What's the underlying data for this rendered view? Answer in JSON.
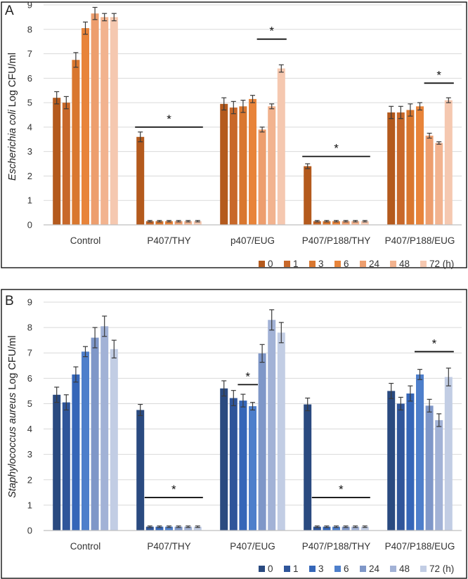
{
  "chart_data": [
    {
      "panel": "A",
      "type": "bar",
      "title": "",
      "ylabel_species": "Escherichia coli",
      "ylabel_rest": " Log CFU/ml",
      "xlabel": "",
      "ylim": [
        0,
        9
      ],
      "yticks": [
        "0",
        "1",
        "2",
        "3",
        "4",
        "5",
        "6",
        "7",
        "8",
        "9"
      ],
      "categories": [
        "Control",
        "P407/THY",
        "p407/EUG",
        "P407/P188/THY",
        "P407/P188/EUG"
      ],
      "series": [
        {
          "name": "0",
          "color": "#b45a1d",
          "values": [
            5.2,
            3.6,
            4.95,
            2.4,
            4.6
          ],
          "errors": [
            0.25,
            0.2,
            0.25,
            0.1,
            0.25
          ]
        },
        {
          "name": "1",
          "color": "#c8682a",
          "values": [
            5.0,
            0.15,
            4.8,
            0.15,
            4.6
          ],
          "errors": [
            0.25,
            0.03,
            0.25,
            0.03,
            0.25
          ]
        },
        {
          "name": "3",
          "color": "#d9772f",
          "values": [
            6.75,
            0.15,
            4.85,
            0.15,
            4.7
          ],
          "errors": [
            0.3,
            0.03,
            0.25,
            0.03,
            0.25
          ]
        },
        {
          "name": "6",
          "color": "#e8843a",
          "values": [
            8.05,
            0.15,
            5.15,
            0.15,
            4.85
          ],
          "errors": [
            0.25,
            0.03,
            0.15,
            0.03,
            0.15
          ]
        },
        {
          "name": "24",
          "color": "#ed9e6e",
          "values": [
            8.65,
            0.15,
            3.9,
            0.15,
            3.65
          ],
          "errors": [
            0.25,
            0.03,
            0.1,
            0.03,
            0.1
          ]
        },
        {
          "name": "48",
          "color": "#f2b38f",
          "values": [
            8.5,
            0.15,
            4.85,
            0.15,
            3.35
          ],
          "errors": [
            0.15,
            0.03,
            0.1,
            0.03,
            0.05
          ]
        },
        {
          "name": "72",
          "color": "#f5c8b0",
          "values": [
            8.5,
            0.15,
            6.4,
            0.15,
            5.1
          ],
          "errors": [
            0.15,
            0.03,
            0.15,
            0.03,
            0.1
          ]
        }
      ],
      "significance": [
        {
          "label": "*",
          "category_index": 1,
          "from_series": 0,
          "to_series": 6,
          "y": 4.0
        },
        {
          "label": "*",
          "category_index": 2,
          "from_series": 4,
          "to_series": 6,
          "y": 7.6
        },
        {
          "label": "*",
          "category_index": 3,
          "from_series": 0,
          "to_series": 6,
          "y": 2.8
        },
        {
          "label": "*",
          "category_index": 4,
          "from_series": 4,
          "to_series": 6,
          "y": 5.8
        }
      ],
      "legend": {
        "position": "bottom-right",
        "labels": [
          "0",
          "1",
          "3",
          "6",
          "24",
          "48",
          "72 (h)"
        ]
      }
    },
    {
      "panel": "B",
      "type": "bar",
      "title": "",
      "ylabel_species": "Staphylococcus aureus",
      "ylabel_rest": " Log CFU/ml",
      "xlabel": "",
      "ylim": [
        0,
        9
      ],
      "yticks": [
        "0",
        "1",
        "2",
        "3",
        "4",
        "5",
        "6",
        "7",
        "8",
        "9"
      ],
      "categories": [
        "Control",
        "P407/THY",
        "P407/EUG",
        "P407/P188/THY",
        "P407/P188/EUG"
      ],
      "series": [
        {
          "name": "0",
          "color": "#2a4a80",
          "values": [
            5.35,
            4.75,
            5.6,
            4.97,
            5.5
          ],
          "errors": [
            0.3,
            0.22,
            0.3,
            0.25,
            0.3
          ]
        },
        {
          "name": "1",
          "color": "#2f559a",
          "values": [
            5.05,
            0.15,
            5.22,
            0.15,
            5.0
          ],
          "errors": [
            0.3,
            0.03,
            0.3,
            0.03,
            0.25
          ]
        },
        {
          "name": "3",
          "color": "#3566b8",
          "values": [
            6.15,
            0.15,
            5.12,
            0.15,
            5.4
          ],
          "errors": [
            0.3,
            0.03,
            0.25,
            0.03,
            0.3
          ]
        },
        {
          "name": "6",
          "color": "#4e7fcb",
          "values": [
            7.05,
            0.15,
            4.9,
            0.15,
            6.15
          ],
          "errors": [
            0.2,
            0.03,
            0.15,
            0.03,
            0.2
          ]
        },
        {
          "name": "24",
          "color": "#7f97c8",
          "values": [
            7.6,
            0.15,
            6.98,
            0.15,
            4.92
          ],
          "errors": [
            0.4,
            0.03,
            0.35,
            0.03,
            0.25
          ]
        },
        {
          "name": "48",
          "color": "#a2b2d6",
          "values": [
            8.05,
            0.15,
            8.3,
            0.15,
            4.35
          ],
          "errors": [
            0.4,
            0.03,
            0.4,
            0.03,
            0.25
          ]
        },
        {
          "name": "72",
          "color": "#c2cde4",
          "values": [
            7.15,
            0.15,
            7.8,
            0.15,
            6.05
          ],
          "errors": [
            0.35,
            0.03,
            0.4,
            0.03,
            0.35
          ]
        }
      ],
      "significance": [
        {
          "label": "*",
          "category_index": 1,
          "from_series": 1,
          "to_series": 6,
          "y": 1.3
        },
        {
          "label": "*",
          "category_index": 2,
          "from_series": 2,
          "to_series": 3,
          "y": 5.75
        },
        {
          "label": "*",
          "category_index": 3,
          "from_series": 1,
          "to_series": 6,
          "y": 1.3
        },
        {
          "label": "*",
          "category_index": 4,
          "from_series": 3,
          "to_series": 6,
          "y": 7.05
        }
      ],
      "legend": {
        "position": "bottom-right",
        "labels": [
          "0",
          "1",
          "3",
          "6",
          "24",
          "48",
          "72 (h)"
        ]
      }
    }
  ]
}
